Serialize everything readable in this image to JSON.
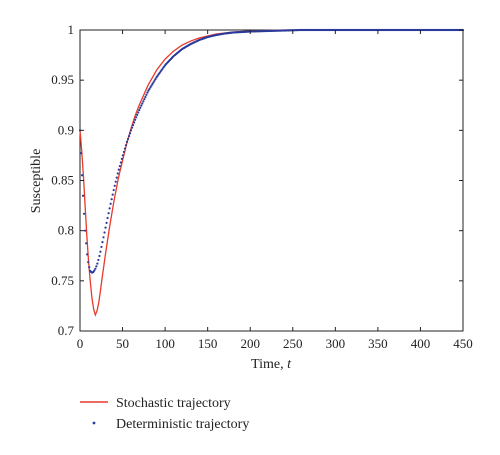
{
  "chart_data": {
    "type": "line",
    "title": "",
    "xlabel": "Time, ",
    "xlabel_var": "t",
    "ylabel": "Susceptible",
    "xlim": [
      0,
      450
    ],
    "ylim": [
      0.7,
      1.0
    ],
    "xticks": [
      0,
      50,
      100,
      150,
      200,
      250,
      300,
      350,
      400,
      450
    ],
    "yticks": [
      0.7,
      0.75,
      0.8,
      0.85,
      0.9,
      0.95,
      1
    ],
    "xtick_labels": [
      "0",
      "50",
      "100",
      "150",
      "200",
      "250",
      "300",
      "350",
      "400",
      "450"
    ],
    "ytick_labels": [
      "0.7",
      "0.75",
      "0.8",
      "0.85",
      "0.9",
      "0.95",
      "1"
    ],
    "grid": false,
    "legend_position": "bottom-left, below plot",
    "series": [
      {
        "name": "Stochastic trajectory",
        "style": "line",
        "color": "#e8392a",
        "x": [
          0,
          2,
          4,
          6,
          8,
          10,
          12,
          14,
          16,
          18,
          20,
          22,
          24,
          26,
          28,
          30,
          35,
          40,
          45,
          50,
          55,
          60,
          65,
          70,
          80,
          90,
          100,
          110,
          120,
          130,
          140,
          150,
          160,
          170,
          180,
          190,
          200,
          220,
          240,
          260,
          280,
          300,
          350,
          400,
          450
        ],
        "y": [
          0.9,
          0.88,
          0.855,
          0.825,
          0.795,
          0.77,
          0.75,
          0.733,
          0.722,
          0.716,
          0.72,
          0.728,
          0.74,
          0.753,
          0.765,
          0.777,
          0.805,
          0.83,
          0.852,
          0.87,
          0.887,
          0.902,
          0.915,
          0.926,
          0.945,
          0.96,
          0.971,
          0.979,
          0.985,
          0.989,
          0.992,
          0.994,
          0.996,
          0.997,
          0.998,
          0.9985,
          0.999,
          0.9995,
          1.0,
          1.0,
          1.0,
          1.0,
          1.0,
          1.0,
          1.0
        ]
      },
      {
        "name": "Deterministic trajectory",
        "style": "markers",
        "color": "#2a3a9c",
        "x": [
          0,
          2,
          4,
          6,
          8,
          10,
          12,
          14,
          16,
          18,
          20,
          22,
          24,
          26,
          28,
          30,
          35,
          40,
          45,
          50,
          55,
          60,
          65,
          70,
          80,
          90,
          100,
          110,
          120,
          130,
          140,
          150,
          160,
          170,
          180,
          190,
          200,
          220,
          240,
          260,
          280,
          300,
          350,
          400,
          450
        ],
        "y": [
          0.9,
          0.862,
          0.828,
          0.8,
          0.779,
          0.766,
          0.76,
          0.758,
          0.759,
          0.762,
          0.766,
          0.772,
          0.779,
          0.787,
          0.795,
          0.803,
          0.823,
          0.842,
          0.859,
          0.874,
          0.888,
          0.9,
          0.911,
          0.921,
          0.939,
          0.953,
          0.965,
          0.974,
          0.981,
          0.986,
          0.99,
          0.993,
          0.995,
          0.9965,
          0.9975,
          0.998,
          0.9985,
          0.999,
          0.9995,
          1.0,
          1.0,
          1.0,
          1.0,
          1.0,
          1.0
        ]
      }
    ]
  }
}
